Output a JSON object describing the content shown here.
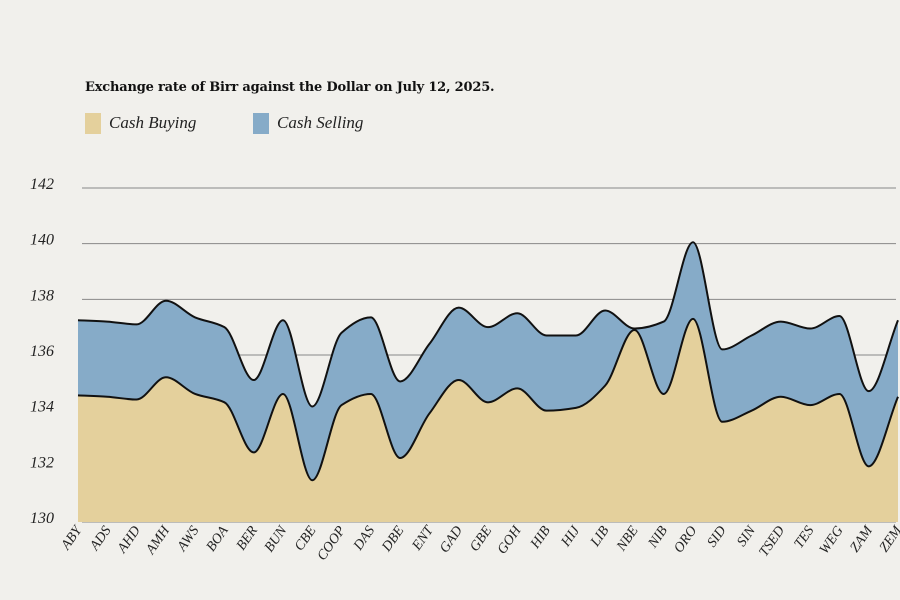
{
  "chart_data": {
    "type": "area",
    "title": "Exchange rate of Birr against the Dollar on July 12, 2025.",
    "xlabel": "",
    "ylabel": "",
    "ylim": [
      130,
      142
    ],
    "yticks": [
      130,
      132,
      134,
      136,
      138,
      140,
      142
    ],
    "grid": true,
    "legend_position": "top-left",
    "categories": [
      "ABY",
      "ADS",
      "AHD",
      "AMH",
      "AWS",
      "BOA",
      "BER",
      "BUN",
      "CBE",
      "COOP",
      "DAS",
      "DBE",
      "ENT",
      "GAD",
      "GBE",
      "GOH",
      "HIB",
      "HIJ",
      "LIB",
      "NBE",
      "NIB",
      "ORO",
      "SID",
      "SIN",
      "TSED",
      "TES",
      "WEG",
      "ZAM",
      "ZEM"
    ],
    "series": [
      {
        "name": "Cash Buying",
        "color": "#e4d09c",
        "values": [
          134.55,
          134.5,
          134.4,
          135.2,
          134.6,
          134.3,
          132.5,
          134.6,
          131.5,
          134.2,
          134.6,
          132.3,
          133.9,
          135.1,
          134.3,
          134.8,
          134.0,
          134.1,
          134.9,
          136.9,
          134.6,
          137.3,
          133.6,
          134.0,
          134.5,
          134.2,
          134.6,
          132.0,
          134.5
        ]
      },
      {
        "name": "Cash Selling",
        "color": "#86abc8",
        "values": [
          137.25,
          137.2,
          137.1,
          137.95,
          137.35,
          137.0,
          135.1,
          137.25,
          134.15,
          136.8,
          137.35,
          135.05,
          136.4,
          137.7,
          137.0,
          137.5,
          136.7,
          136.7,
          137.6,
          136.95,
          137.2,
          140.05,
          136.2,
          136.7,
          137.2,
          136.95,
          137.4,
          134.7,
          137.25
        ]
      }
    ]
  },
  "colors": {
    "background": "#f1f0ec",
    "grid": "#888888",
    "outline": "#111111"
  }
}
